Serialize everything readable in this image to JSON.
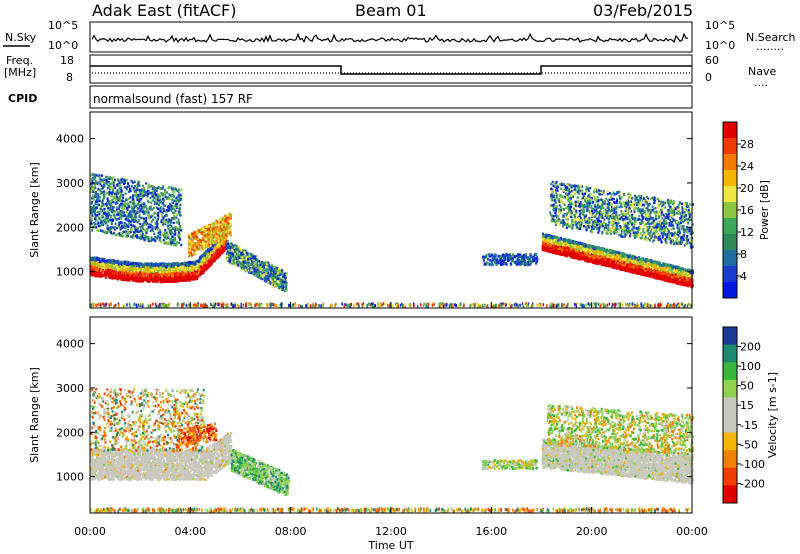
{
  "header": {
    "title": "Adak East (fitACF)",
    "beam": "Beam 01",
    "date": "03/Feb/2015"
  },
  "top_panel": {
    "left_label": "N.Sky",
    "left_ticks": [
      "10^5",
      "10^0"
    ],
    "right_ticks": [
      "10^5",
      "10^0"
    ],
    "right_label": "N.Search",
    "right_legend": "........"
  },
  "freq_panel": {
    "left_label_1": "Freq.",
    "left_label_2": "[MHz]",
    "left_ticks": [
      "18",
      "8"
    ],
    "right_ticks": [
      "60",
      "0"
    ],
    "right_label": "Nave",
    "right_legend": "...."
  },
  "cpid_panel": {
    "left_label": "CPID",
    "text": "normalsound (fast) 157 RF"
  },
  "colors": {
    "power_scale": [
      "#0018e0",
      "#1a3bd0",
      "#1f6ea0",
      "#2e8b57",
      "#3ea85a",
      "#8cc63f",
      "#f0e442",
      "#f5b400",
      "#f57a00",
      "#f03c00",
      "#e00000"
    ],
    "velocity_scale": [
      "#e00000",
      "#f03c00",
      "#f08000",
      "#f5b400",
      "#c8c8c0",
      "#c8c8c0",
      "#8fd24f",
      "#38b838",
      "#1a8a70",
      "#1a3b9a"
    ]
  },
  "chart_data": [
    {
      "type": "heatmap",
      "name": "power",
      "ylabel": "Slant Range [km]",
      "xlabel": "",
      "ylim": [
        180,
        4600
      ],
      "yticks": [
        "1000",
        "2000",
        "3000",
        "4000"
      ],
      "colorbar_label": "Power [dB]",
      "colorbar_ticks": [
        "28",
        "24",
        "20",
        "16",
        "12",
        "8",
        "4"
      ]
    },
    {
      "type": "heatmap",
      "name": "velocity",
      "ylabel": "Slant Range [km]",
      "xlabel": "Time UT",
      "ylim": [
        180,
        4600
      ],
      "yticks": [
        "1000",
        "2000",
        "3000",
        "4000"
      ],
      "xticks": [
        "00:00",
        "04:00",
        "08:00",
        "12:00",
        "16:00",
        "20:00",
        "00:00"
      ],
      "colorbar_label": "Velocity [m s-1]",
      "colorbar_ticks": [
        "200",
        "100",
        "50",
        "15",
        "-15",
        "-50",
        "-100",
        "-200"
      ]
    }
  ]
}
